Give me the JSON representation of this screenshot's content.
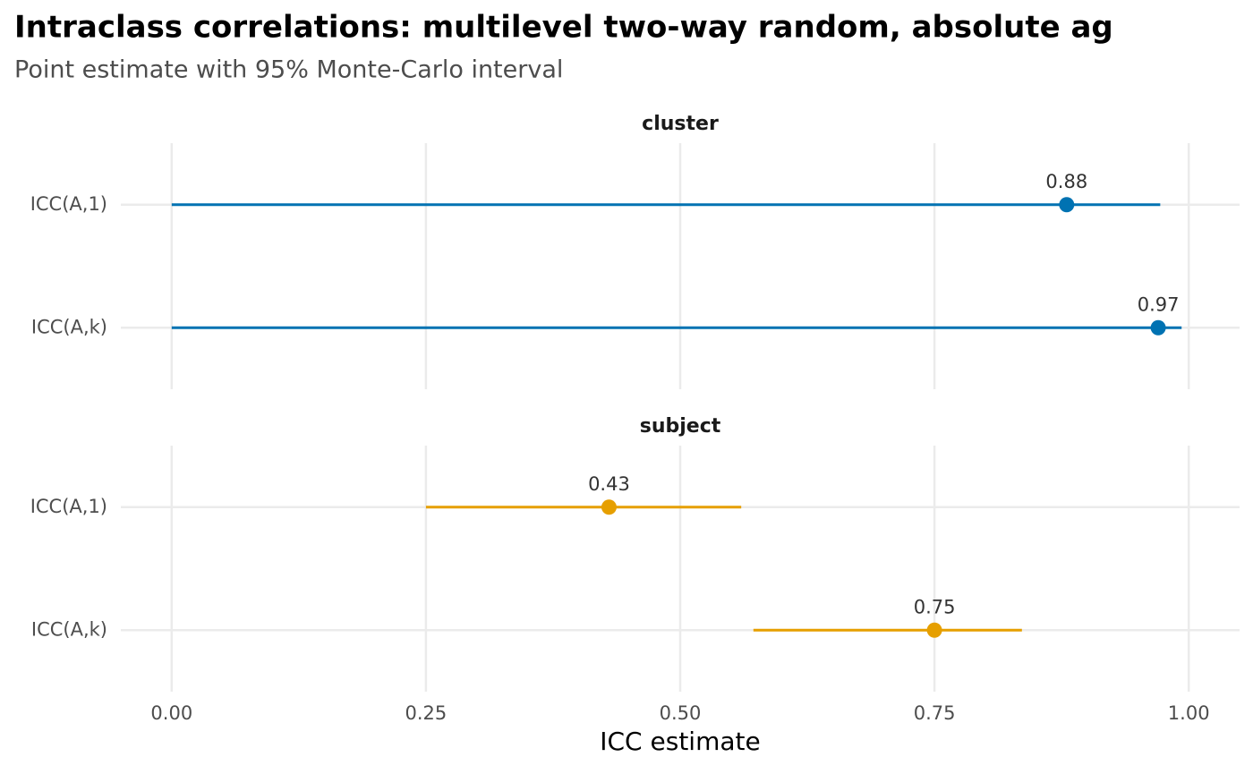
{
  "chart_data": {
    "type": "dot-interval",
    "title": "Intraclass correlations: multilevel two-way random, absolute ag",
    "subtitle": "Point estimate with 95% Monte-Carlo interval",
    "x_label": "ICC estimate",
    "xlim": [
      -0.05,
      1.05
    ],
    "xticks": [
      {
        "value": 0,
        "label": "0.00"
      },
      {
        "value": 0.25,
        "label": "0.25"
      },
      {
        "value": 0.5,
        "label": "0.50"
      },
      {
        "value": 0.75,
        "label": "0.75"
      },
      {
        "value": 1,
        "label": "1.00"
      }
    ],
    "grid": true,
    "panels": [
      {
        "title": "cluster",
        "color": "#0072B2",
        "categories": [
          "ICC(A,1)",
          "ICC(A,k)"
        ],
        "values": [
          0.88,
          0.97
        ],
        "lower": [
          0,
          0
        ],
        "upper": [
          0.972,
          0.993
        ]
      },
      {
        "title": "subject",
        "color": "#E69F00",
        "categories": [
          "ICC(A,1)",
          "ICC(A,k)"
        ],
        "values": [
          0.43,
          0.75
        ],
        "lower": [
          0.25,
          0.572
        ],
        "upper": [
          0.56,
          0.836
        ]
      }
    ]
  }
}
